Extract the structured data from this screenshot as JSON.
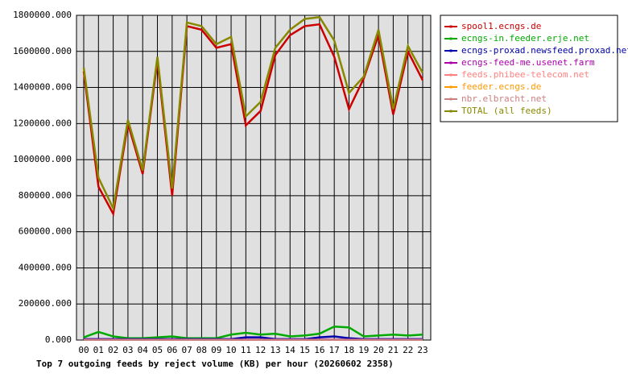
{
  "chart_data": {
    "type": "line",
    "title": "Top 7 outgoing feeds by reject volume (KB) per hour (20260602 2358)",
    "categories": [
      "00",
      "01",
      "02",
      "03",
      "04",
      "05",
      "06",
      "07",
      "08",
      "09",
      "10",
      "11",
      "12",
      "13",
      "14",
      "15",
      "16",
      "17",
      "18",
      "19",
      "20",
      "21",
      "22",
      "23"
    ],
    "ylim": [
      0,
      1800000
    ],
    "yticks": [
      {
        "value": 0,
        "label": "0.000"
      },
      {
        "value": 200000,
        "label": "200000.000"
      },
      {
        "value": 400000,
        "label": "400000.000"
      },
      {
        "value": 600000,
        "label": "600000.000"
      },
      {
        "value": 800000,
        "label": "800000.000"
      },
      {
        "value": 1000000,
        "label": "1000000.000"
      },
      {
        "value": 1200000,
        "label": "1200000.000"
      },
      {
        "value": 1400000,
        "label": "1400000.000"
      },
      {
        "value": 1600000,
        "label": "1600000.000"
      },
      {
        "value": 1800000,
        "label": "1800000.000"
      }
    ],
    "grid": true,
    "series": [
      {
        "name": "spool1.ecngs.de",
        "color": "#cc0000",
        "values": [
          1490000,
          850000,
          700000,
          1200000,
          920000,
          1550000,
          800000,
          1740000,
          1720000,
          1620000,
          1640000,
          1190000,
          1270000,
          1580000,
          1690000,
          1740000,
          1750000,
          1570000,
          1280000,
          1450000,
          1690000,
          1250000,
          1600000,
          1440000
        ]
      },
      {
        "name": "ecngs-in.feeder.erje.net",
        "color": "#00aa00",
        "values": [
          15000,
          45000,
          20000,
          10000,
          10000,
          15000,
          20000,
          10000,
          10000,
          10000,
          30000,
          40000,
          30000,
          35000,
          20000,
          25000,
          35000,
          75000,
          70000,
          20000,
          25000,
          30000,
          25000,
          30000
        ]
      },
      {
        "name": "ecngs-proxad.newsfeed.proxad.net",
        "color": "#0000aa",
        "values": [
          5000,
          5000,
          5000,
          5000,
          5000,
          5000,
          5000,
          5000,
          5000,
          5000,
          5000,
          15000,
          15000,
          5000,
          5000,
          5000,
          15000,
          20000,
          10000,
          5000,
          5000,
          5000,
          5000,
          5000
        ]
      },
      {
        "name": "ecngs-feed-me.usenet.farm",
        "color": "#aa00aa",
        "values": [
          2000,
          2000,
          2000,
          2000,
          2000,
          2000,
          2000,
          2000,
          2000,
          2000,
          2000,
          2000,
          2000,
          2000,
          2000,
          2000,
          2000,
          2000,
          2000,
          2000,
          2000,
          2000,
          2000,
          2000
        ]
      },
      {
        "name": "feeds.phibee-telecom.net",
        "color": "#ff8080",
        "values": [
          1000,
          1000,
          1000,
          1000,
          1000,
          1000,
          1000,
          1000,
          1000,
          1000,
          1000,
          1000,
          1000,
          1000,
          1000,
          1000,
          1000,
          1000,
          1000,
          1000,
          1000,
          1000,
          1000,
          1000
        ]
      },
      {
        "name": "feeder.ecngs.de",
        "color": "#ff9900",
        "values": [
          1000,
          1000,
          1000,
          1000,
          1000,
          1000,
          1000,
          1000,
          1000,
          1000,
          1000,
          1000,
          1000,
          1000,
          1000,
          1000,
          1000,
          1000,
          1000,
          1000,
          1000,
          1000,
          1000,
          1000
        ]
      },
      {
        "name": "nbr.elbracht.net",
        "color": "#cc8080",
        "values": [
          1000,
          1000,
          1000,
          1000,
          1000,
          1000,
          1000,
          1000,
          1000,
          1000,
          1000,
          1000,
          1000,
          1000,
          1000,
          1000,
          1000,
          1000,
          1000,
          1000,
          1000,
          1000,
          1000,
          1000
        ]
      },
      {
        "name": "TOTAL (all feeds)",
        "color": "#888800",
        "values": [
          1510000,
          900000,
          730000,
          1220000,
          940000,
          1570000,
          840000,
          1760000,
          1740000,
          1640000,
          1680000,
          1240000,
          1320000,
          1620000,
          1720000,
          1780000,
          1790000,
          1660000,
          1370000,
          1460000,
          1720000,
          1280000,
          1630000,
          1480000
        ]
      }
    ]
  }
}
